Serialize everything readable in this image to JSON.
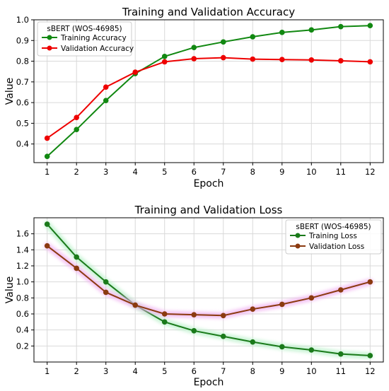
{
  "chart_data": [
    {
      "type": "line",
      "title": "Training and Validation Accuracy",
      "xlabel": "Epoch",
      "ylabel": "Value",
      "x": [
        1,
        2,
        3,
        4,
        5,
        6,
        7,
        8,
        9,
        10,
        11,
        12
      ],
      "xlim": [
        0.55,
        12.45
      ],
      "ylim": [
        0.31,
        1.0
      ],
      "yticks": [
        0.4,
        0.5,
        0.6,
        0.7,
        0.8,
        0.9,
        1.0
      ],
      "ytick_labels": [
        "0.4",
        "0.5",
        "0.6",
        "0.7",
        "0.8",
        "0.9",
        "1.0"
      ],
      "grid": true,
      "legend_title": "sBERT (WOS-46985)",
      "legend_position": "top-left",
      "series": [
        {
          "name": "Training Accuracy",
          "color": "#118811",
          "values": [
            0.34,
            0.47,
            0.61,
            0.74,
            0.823,
            0.866,
            0.893,
            0.918,
            0.939,
            0.951,
            0.967,
            0.972
          ]
        },
        {
          "name": "Validation Accuracy",
          "color": "#ee0000",
          "values": [
            0.428,
            0.528,
            0.675,
            0.747,
            0.797,
            0.812,
            0.817,
            0.81,
            0.808,
            0.806,
            0.802,
            0.797
          ]
        }
      ]
    },
    {
      "type": "line",
      "title": "Training and Validation Loss",
      "xlabel": "Epoch",
      "ylabel": "Value",
      "x": [
        1,
        2,
        3,
        4,
        5,
        6,
        7,
        8,
        9,
        10,
        11,
        12
      ],
      "xlim": [
        0.55,
        12.45
      ],
      "ylim": [
        0.0,
        1.8
      ],
      "yticks": [
        0.2,
        0.4,
        0.6,
        0.8,
        1.0,
        1.2,
        1.4,
        1.6
      ],
      "ytick_labels": [
        "0.2",
        "0.4",
        "0.6",
        "0.8",
        "1.0",
        "1.2",
        "1.4",
        "1.6"
      ],
      "grid": true,
      "legend_title": "sBERT (WOS-46985)",
      "legend_position": "top-right",
      "series": [
        {
          "name": "Training Loss",
          "color": "#1a7a1a",
          "glow": "#b8f0c8",
          "values": [
            1.72,
            1.31,
            1.0,
            0.71,
            0.5,
            0.39,
            0.32,
            0.25,
            0.19,
            0.15,
            0.1,
            0.08
          ]
        },
        {
          "name": "Validation Loss",
          "color": "#8b3a10",
          "glow": "#f0b0f0",
          "values": [
            1.45,
            1.17,
            0.87,
            0.71,
            0.6,
            0.59,
            0.58,
            0.66,
            0.72,
            0.8,
            0.9,
            1.0
          ]
        }
      ]
    }
  ]
}
